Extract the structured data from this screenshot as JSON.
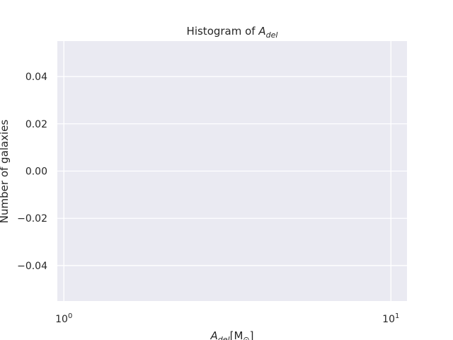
{
  "chart_data": {
    "type": "bar",
    "title": {
      "prefix": "Histogram of ",
      "var_main": "A",
      "var_sub": "del"
    },
    "xlabel": {
      "var_main": "A",
      "var_sub": "del",
      "unit_open": "[M",
      "unit_sub": "⊙",
      "unit_close": "]"
    },
    "ylabel": "Number of galaxies",
    "x_scale": "log",
    "xlim": [
      0.955,
      11.2
    ],
    "ylim": [
      -0.055,
      0.055
    ],
    "x_ticks": [
      {
        "value": 1,
        "base": "10",
        "exp": "0"
      },
      {
        "value": 10,
        "base": "10",
        "exp": "1"
      }
    ],
    "y_ticks": [
      {
        "value": 0.04,
        "label": "0.04"
      },
      {
        "value": 0.02,
        "label": "0.02"
      },
      {
        "value": 0.0,
        "label": "0.00"
      },
      {
        "value": -0.02,
        "label": "−0.02"
      },
      {
        "value": -0.04,
        "label": "−0.04"
      }
    ],
    "bins": [],
    "grid": true,
    "colors": {
      "plot_bg": "#eaeaf2",
      "grid": "#ffffff",
      "text": "#262626"
    }
  }
}
